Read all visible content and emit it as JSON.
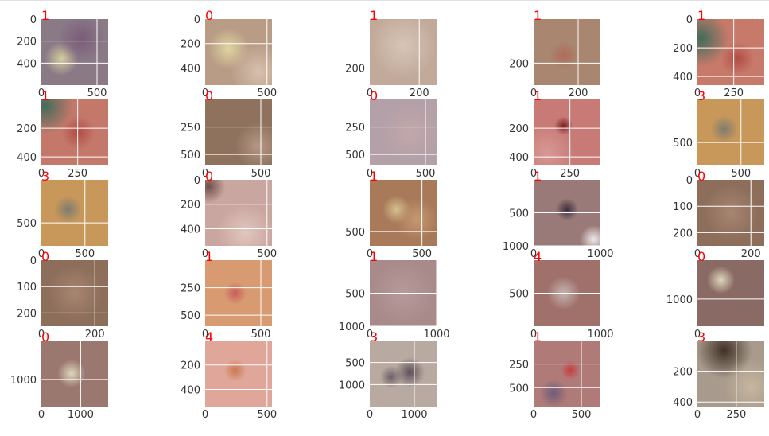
{
  "figure": {
    "type": "image-grid",
    "rows": 5,
    "cols": 5,
    "label_color": "#ff0000",
    "tick_color": "#333333",
    "grid_color": "#ffffff"
  },
  "chart_data": [
    {
      "label": "1",
      "xticks": [
        "0",
        "500"
      ],
      "yticks": [
        "0",
        "200",
        "400"
      ],
      "img_w": 600,
      "img_h": 600,
      "xt": [
        0,
        500
      ],
      "yt": [
        0,
        200,
        400
      ],
      "img": {
        "bg": "#8a7a86",
        "spots": [
          {
            "c": "#d9d0a0",
            "x": 0.3,
            "y": 0.6,
            "r": 0.18
          },
          {
            "c": "#7a5a78",
            "x": 0.6,
            "y": 0.3,
            "r": 0.25
          }
        ]
      }
    },
    {
      "label": "0",
      "xticks": [
        "0",
        "500"
      ],
      "yticks": [
        "0",
        "200",
        "400"
      ],
      "img_w": 540,
      "img_h": 540,
      "xt": [
        0,
        500
      ],
      "yt": [
        0,
        200,
        400
      ],
      "img": {
        "bg": "#b89c86",
        "spots": [
          {
            "c": "#e2d6a0",
            "x": 0.35,
            "y": 0.45,
            "r": 0.22
          },
          {
            "c": "#d8c2b0",
            "x": 0.8,
            "y": 0.8,
            "r": 0.3
          }
        ]
      }
    },
    {
      "label": "1",
      "xticks": [
        "0",
        "200"
      ],
      "yticks": [
        "200"
      ],
      "img_w": 270,
      "img_h": 270,
      "xt": [
        0,
        200
      ],
      "yt": [
        200
      ],
      "img": {
        "bg": "#c2aa9a",
        "spots": [
          {
            "c": "#d8c6b8",
            "x": 0.5,
            "y": 0.4,
            "r": 0.35
          }
        ]
      }
    },
    {
      "label": "1",
      "xticks": [
        "0",
        "200"
      ],
      "yticks": [
        "200"
      ],
      "img_w": 300,
      "img_h": 300,
      "xt": [
        0,
        200
      ],
      "yt": [
        200
      ],
      "img": {
        "bg": "#a88670",
        "spots": [
          {
            "c": "#b06a5a",
            "x": 0.45,
            "y": 0.55,
            "r": 0.15
          }
        ]
      }
    },
    {
      "label": "1",
      "xticks": [
        "0",
        "250"
      ],
      "yticks": [
        "0",
        "200",
        "400"
      ],
      "img_w": 460,
      "img_h": 460,
      "xt": [
        0,
        250
      ],
      "yt": [
        0,
        200,
        400
      ],
      "img": {
        "bg": "#c77a6a",
        "spots": [
          {
            "c": "#3a6a5a",
            "x": 0.05,
            "y": 0.3,
            "r": 0.3
          },
          {
            "c": "#b04a44",
            "x": 0.6,
            "y": 0.6,
            "r": 0.18
          }
        ]
      }
    },
    {
      "label": "1",
      "xticks": [
        "0",
        "250"
      ],
      "yticks": [
        "200",
        "400"
      ],
      "img_w": 460,
      "img_h": 460,
      "xt": [
        0,
        250
      ],
      "yt": [
        200,
        400
      ],
      "img": {
        "bg": "#c4786a",
        "spots": [
          {
            "c": "#3a6a5a",
            "x": 0.05,
            "y": 0.1,
            "r": 0.3
          },
          {
            "c": "#b04a44",
            "x": 0.55,
            "y": 0.5,
            "r": 0.18
          }
        ]
      }
    },
    {
      "label": "0",
      "xticks": [
        "0",
        "500"
      ],
      "yticks": [
        "250",
        "500"
      ],
      "img_w": 600,
      "img_h": 600,
      "xt": [
        0,
        500
      ],
      "yt": [
        250,
        500
      ],
      "img": {
        "bg": "#8e725e",
        "spots": [
          {
            "c": "#b89a86",
            "x": 0.8,
            "y": 0.7,
            "r": 0.25
          }
        ]
      }
    },
    {
      "label": "0",
      "xticks": [
        "0",
        "500"
      ],
      "yticks": [
        "250",
        "500"
      ],
      "img_w": 600,
      "img_h": 600,
      "xt": [
        0,
        500
      ],
      "yt": [
        250,
        500
      ],
      "img": {
        "bg": "#b4a0a8",
        "spots": [
          {
            "c": "#c2a8aa",
            "x": 0.6,
            "y": 0.5,
            "r": 0.3
          }
        ]
      }
    },
    {
      "label": "1",
      "xticks": [
        "0",
        "250"
      ],
      "yticks": [
        "200",
        "400"
      ],
      "img_w": 460,
      "img_h": 460,
      "xt": [
        0,
        250
      ],
      "yt": [
        200,
        400
      ],
      "img": {
        "bg": "#c77a76",
        "spots": [
          {
            "c": "#7a1a1a",
            "x": 0.45,
            "y": 0.4,
            "r": 0.1
          },
          {
            "c": "#d89a96",
            "x": 0.2,
            "y": 0.8,
            "r": 0.3
          }
        ]
      }
    },
    {
      "label": "3",
      "xticks": [
        "0",
        "500"
      ],
      "yticks": [
        "500"
      ],
      "img_w": 767,
      "img_h": 767,
      "xt": [
        0,
        500
      ],
      "yt": [
        500
      ],
      "img": {
        "bg": "#c8985a",
        "spots": [
          {
            "c": "#7c7a72",
            "x": 0.4,
            "y": 0.45,
            "r": 0.15
          }
        ]
      }
    },
    {
      "label": "3",
      "xticks": [
        "0",
        "500"
      ],
      "yticks": [
        "500"
      ],
      "img_w": 767,
      "img_h": 767,
      "xt": [
        0,
        500
      ],
      "yt": [
        500
      ],
      "img": {
        "bg": "#c8985a",
        "spots": [
          {
            "c": "#7c7a72",
            "x": 0.4,
            "y": 0.45,
            "r": 0.15
          }
        ]
      }
    },
    {
      "label": "0",
      "xticks": [
        "0",
        "500"
      ],
      "yticks": [
        "0",
        "200",
        "400"
      ],
      "img_w": 540,
      "img_h": 540,
      "xt": [
        0,
        500
      ],
      "yt": [
        0,
        200,
        400
      ],
      "img": {
        "bg": "#caa6a0",
        "spots": [
          {
            "c": "#6a4a46",
            "x": 0.05,
            "y": 0.1,
            "r": 0.18
          },
          {
            "c": "#e2c8c0",
            "x": 0.6,
            "y": 0.8,
            "r": 0.3
          }
        ]
      }
    },
    {
      "label": "1",
      "xticks": [
        "0",
        "500"
      ],
      "yticks": [
        "500"
      ],
      "img_w": 640,
      "img_h": 640,
      "xt": [
        0,
        500
      ],
      "yt": [
        500
      ],
      "img": {
        "bg": "#a87a5a",
        "spots": [
          {
            "c": "#d8c490",
            "x": 0.4,
            "y": 0.45,
            "r": 0.15
          },
          {
            "c": "#c89a70",
            "x": 0.7,
            "y": 0.6,
            "r": 0.22
          }
        ]
      }
    },
    {
      "label": "1",
      "xticks": [
        "0",
        "1000"
      ],
      "yticks": [
        "500",
        "1000"
      ],
      "img_w": 1000,
      "img_h": 1000,
      "xt": [
        0,
        1000
      ],
      "yt": [
        500,
        1000
      ],
      "img": {
        "bg": "#9a7a78",
        "spots": [
          {
            "c": "#3a2a3a",
            "x": 0.5,
            "y": 0.45,
            "r": 0.12
          },
          {
            "c": "#f0f0f0",
            "x": 0.9,
            "y": 0.9,
            "r": 0.15
          }
        ]
      }
    },
    {
      "label": "0",
      "xticks": [
        "0",
        "200"
      ],
      "yticks": [
        "0",
        "100",
        "200"
      ],
      "img_w": 250,
      "img_h": 250,
      "xt": [
        0,
        200
      ],
      "yt": [
        0,
        100,
        200
      ],
      "img": {
        "bg": "#8c6e5a",
        "spots": [
          {
            "c": "#a88672",
            "x": 0.5,
            "y": 0.5,
            "r": 0.3
          }
        ]
      }
    },
    {
      "label": "0",
      "xticks": [
        "0",
        "200"
      ],
      "yticks": [
        "0",
        "100",
        "200"
      ],
      "img_w": 250,
      "img_h": 250,
      "xt": [
        0,
        200
      ],
      "yt": [
        0,
        100,
        200
      ],
      "img": {
        "bg": "#8c6e5a",
        "spots": [
          {
            "c": "#a88672",
            "x": 0.5,
            "y": 0.5,
            "r": 0.3
          }
        ]
      }
    },
    {
      "label": "1",
      "xticks": [
        "0",
        "500"
      ],
      "yticks": [
        "250",
        "500"
      ],
      "img_w": 600,
      "img_h": 600,
      "xt": [
        0,
        500
      ],
      "yt": [
        250,
        500
      ],
      "img": {
        "bg": "#d89a70",
        "spots": [
          {
            "c": "#c85a5a",
            "x": 0.45,
            "y": 0.5,
            "r": 0.12
          }
        ]
      }
    },
    {
      "label": "1",
      "xticks": [
        "0",
        "1000"
      ],
      "yticks": [
        "500",
        "1000"
      ],
      "img_w": 1000,
      "img_h": 1000,
      "xt": [
        0,
        1000
      ],
      "yt": [
        500,
        1000
      ],
      "img": {
        "bg": "#a88a8a",
        "spots": [
          {
            "c": "#b89a9a",
            "x": 0.5,
            "y": 0.5,
            "r": 0.35
          }
        ]
      }
    },
    {
      "label": "4",
      "xticks": [
        "0",
        "1000"
      ],
      "yticks": [
        "500"
      ],
      "img_w": 1000,
      "img_h": 1000,
      "xt": [
        0,
        1000
      ],
      "yt": [
        500
      ],
      "img": {
        "bg": "#a0706a",
        "spots": [
          {
            "c": "#c8b8b4",
            "x": 0.45,
            "y": 0.5,
            "r": 0.18
          }
        ]
      }
    },
    {
      "label": "0",
      "xticks": [
        "0"
      ],
      "yticks": [
        "1000"
      ],
      "img_w": 1700,
      "img_h": 1700,
      "xt": [
        0
      ],
      "yt": [
        1000
      ],
      "img": {
        "bg": "#8a6a64",
        "spots": [
          {
            "c": "#e2dcc0",
            "x": 0.35,
            "y": 0.3,
            "r": 0.15
          }
        ]
      }
    },
    {
      "label": "0",
      "xticks": [
        "0",
        "1000"
      ],
      "yticks": [
        "1000"
      ],
      "img_w": 1700,
      "img_h": 1700,
      "xt": [
        0,
        1000
      ],
      "yt": [
        1000
      ],
      "img": {
        "bg": "#9a7870",
        "spots": [
          {
            "c": "#e2dcc0",
            "x": 0.45,
            "y": 0.5,
            "r": 0.15
          }
        ]
      }
    },
    {
      "label": "4",
      "xticks": [
        "0",
        "500"
      ],
      "yticks": [
        "200",
        "400"
      ],
      "img_w": 540,
      "img_h": 540,
      "xt": [
        0,
        500
      ],
      "yt": [
        200,
        400
      ],
      "img": {
        "bg": "#e0a69a",
        "spots": [
          {
            "c": "#c8764a",
            "x": 0.45,
            "y": 0.45,
            "r": 0.12
          }
        ]
      }
    },
    {
      "label": "3",
      "xticks": [
        "0",
        "1000"
      ],
      "yticks": [
        "500",
        "1000"
      ],
      "img_w": 1500,
      "img_h": 1500,
      "xt": [
        0,
        1000
      ],
      "yt": [
        500,
        1000
      ],
      "img": {
        "bg": "#b8aaa0",
        "spots": [
          {
            "c": "#6a5a66",
            "x": 0.32,
            "y": 0.55,
            "r": 0.12
          },
          {
            "c": "#5a4a56",
            "x": 0.6,
            "y": 0.48,
            "r": 0.16
          }
        ]
      }
    },
    {
      "label": "1",
      "xticks": [
        "0",
        "500"
      ],
      "yticks": [
        "250",
        "500"
      ],
      "img_w": 700,
      "img_h": 700,
      "xt": [
        0,
        500
      ],
      "yt": [
        250,
        500
      ],
      "img": {
        "bg": "#b07a78",
        "spots": [
          {
            "c": "#c83a3a",
            "x": 0.55,
            "y": 0.45,
            "r": 0.1
          },
          {
            "c": "#6a5a7a",
            "x": 0.3,
            "y": 0.8,
            "r": 0.15
          }
        ]
      }
    },
    {
      "label": "3",
      "xticks": [
        "0",
        "250"
      ],
      "yticks": [
        "200",
        "400"
      ],
      "img_w": 430,
      "img_h": 430,
      "xt": [
        0,
        250
      ],
      "yt": [
        200,
        400
      ],
      "img": {
        "bg": "#a89a8c",
        "spots": [
          {
            "c": "#3a2a20",
            "x": 0.4,
            "y": 0.15,
            "r": 0.3
          },
          {
            "c": "#c8b8a0",
            "x": 0.8,
            "y": 0.7,
            "r": 0.3
          }
        ]
      }
    }
  ]
}
